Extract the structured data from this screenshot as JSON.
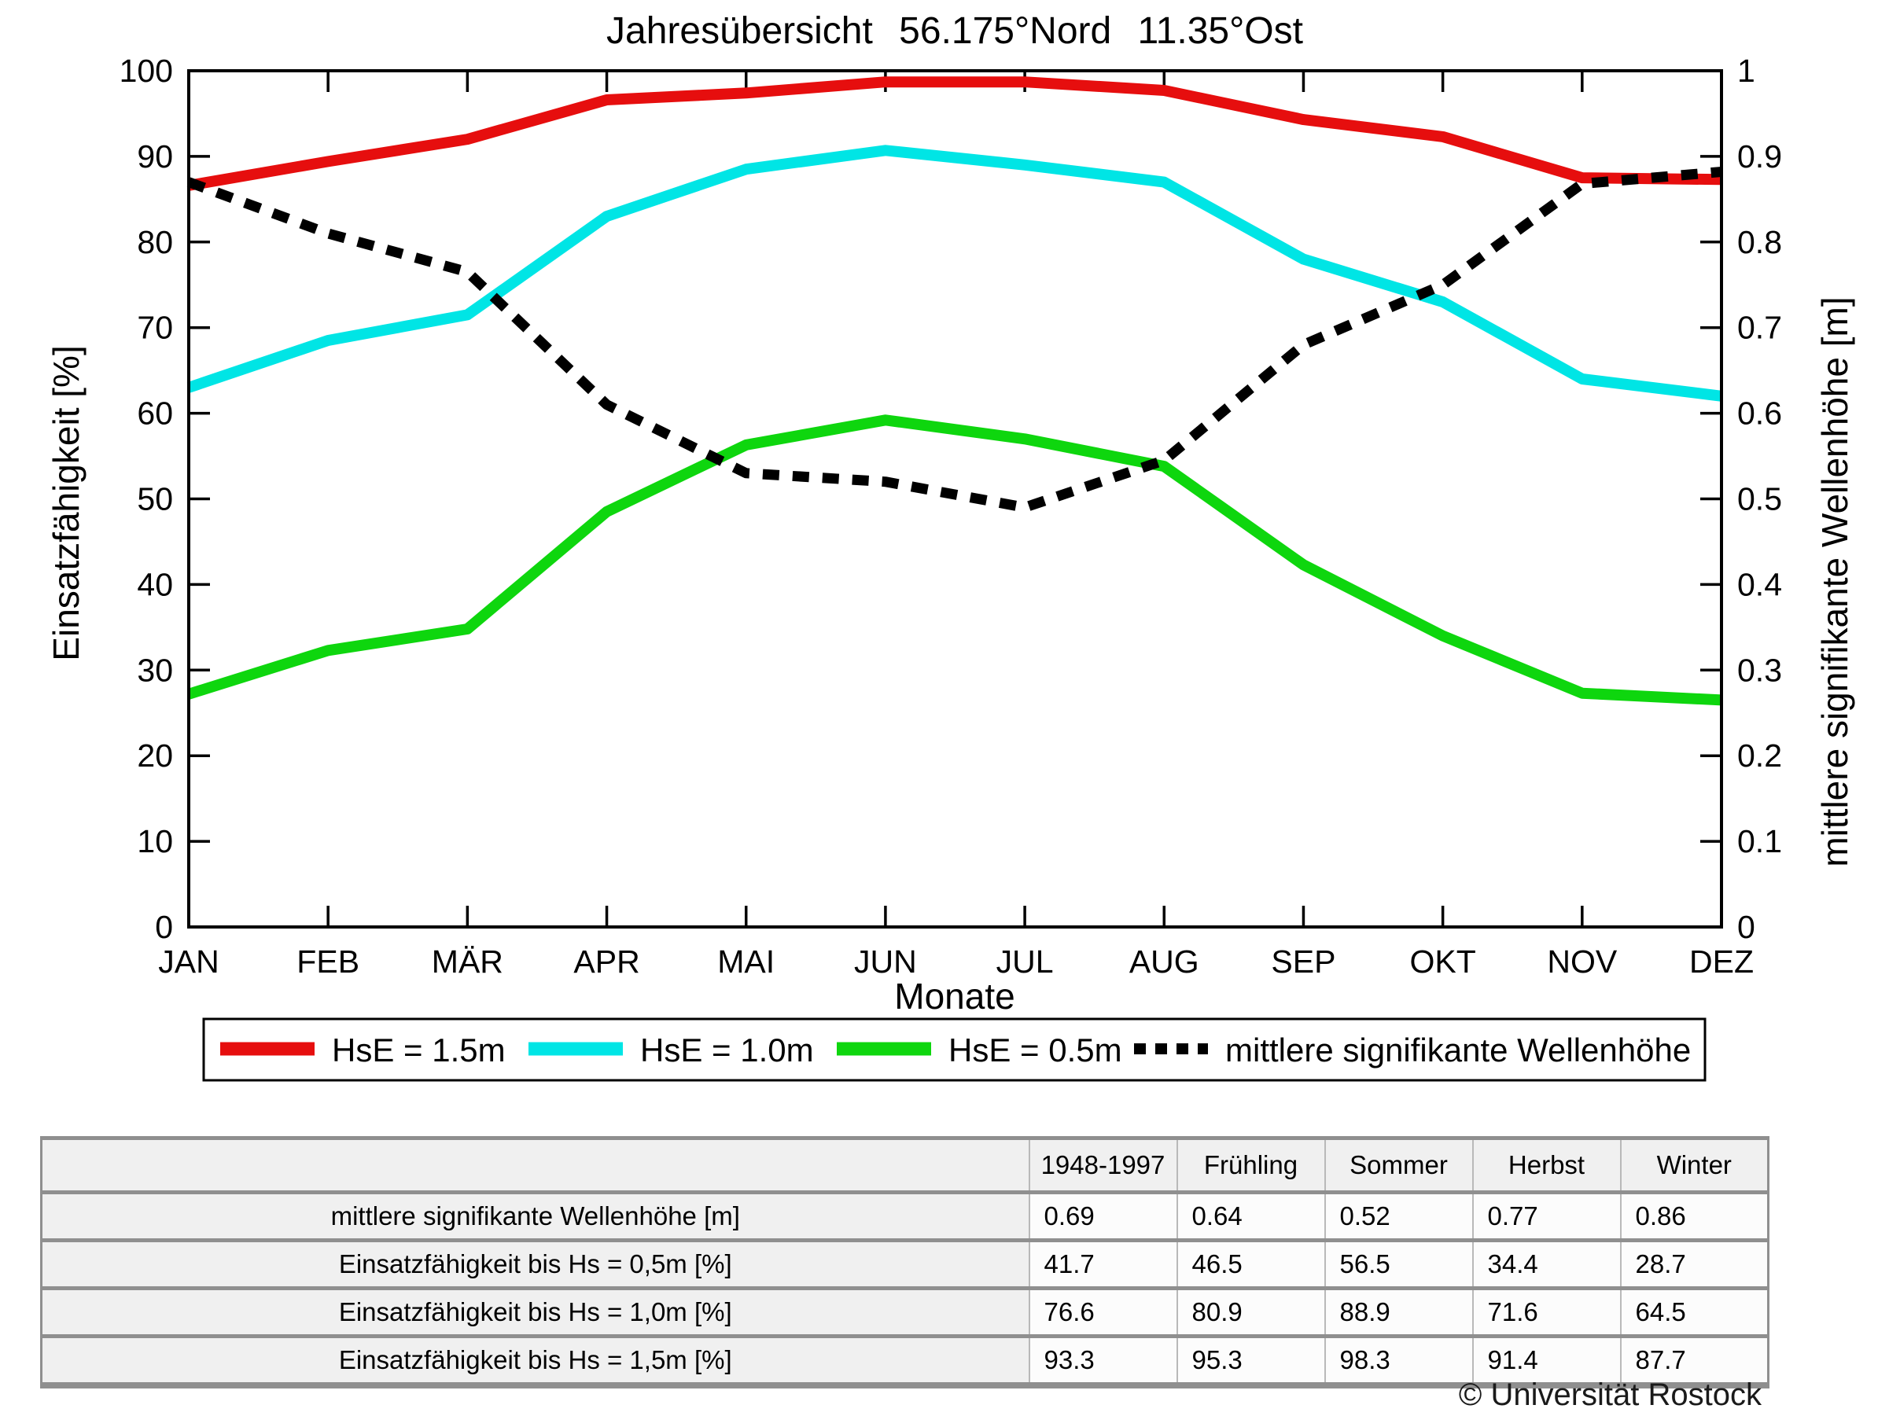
{
  "title": "Jahresübersicht 56.175°Nord 11.35°Ost",
  "chart_data": {
    "type": "line",
    "categories": [
      "JAN",
      "FEB",
      "MÄR",
      "APR",
      "MAI",
      "JUN",
      "JUL",
      "AUG",
      "SEP",
      "OKT",
      "NOV",
      "DEZ"
    ],
    "xlabel": "Monate",
    "ylabel_left": "Einsatzfähigkeit [%]",
    "ylabel_right": "mittlere signifikante Wellenhöhe [m]",
    "ylim_left": [
      0,
      100
    ],
    "ylim_right": [
      0,
      1
    ],
    "yticks_left": [
      0,
      10,
      20,
      30,
      40,
      50,
      60,
      70,
      80,
      90,
      100
    ],
    "yticks_right": [
      "0",
      "0.1",
      "0.2",
      "0.3",
      "0.4",
      "0.5",
      "0.6",
      "0.7",
      "0.8",
      "0.9",
      "1"
    ],
    "grid": "off",
    "legend_position": "below",
    "series": [
      {
        "name": "HsE = 1.5m",
        "color": "#e60e0e",
        "axis": "left",
        "style": "solid",
        "values": [
          86.6,
          89.4,
          92.0,
          96.6,
          97.4,
          98.7,
          98.7,
          97.7,
          94.3,
          92.3,
          87.5,
          87.3
        ]
      },
      {
        "name": "HsE = 1.0m",
        "color": "#00e5e5",
        "axis": "left",
        "style": "solid",
        "values": [
          63.0,
          68.5,
          71.5,
          83.0,
          88.5,
          90.7,
          89.0,
          87.0,
          78.0,
          73.0,
          64.0,
          62.0
        ]
      },
      {
        "name": "HsE = 0.5m",
        "color": "#0ed60e",
        "axis": "left",
        "style": "solid",
        "values": [
          27.2,
          32.3,
          34.8,
          48.5,
          56.3,
          59.2,
          57.0,
          53.8,
          42.3,
          34.0,
          27.3,
          26.5
        ]
      },
      {
        "name": "mittlere signifikante Wellenhöhe",
        "color": "#000000",
        "axis": "right",
        "style": "dotted",
        "values": [
          0.87,
          0.81,
          0.765,
          0.61,
          0.53,
          0.52,
          0.49,
          0.545,
          0.68,
          0.75,
          0.868,
          0.882
        ]
      }
    ]
  },
  "table": {
    "headers": [
      "",
      "1948-1997",
      "Frühling",
      "Sommer",
      "Herbst",
      "Winter"
    ],
    "rows": [
      {
        "label": "mittlere signifikante Wellenhöhe [m]",
        "values": [
          "0.69",
          "0.64",
          "0.52",
          "0.77",
          "0.86"
        ]
      },
      {
        "label": "Einsatzfähigkeit bis Hs = 0,5m [%]",
        "values": [
          "41.7",
          "46.5",
          "56.5",
          "34.4",
          "28.7"
        ]
      },
      {
        "label": "Einsatzfähigkeit bis Hs = 1,0m [%]",
        "values": [
          "76.6",
          "80.9",
          "88.9",
          "71.6",
          "64.5"
        ]
      },
      {
        "label": "Einsatzfähigkeit bis Hs = 1,5m [%]",
        "values": [
          "93.3",
          "95.3",
          "98.3",
          "91.4",
          "87.7"
        ]
      }
    ]
  },
  "footer": {
    "copyright": "© Universität Rostock"
  }
}
